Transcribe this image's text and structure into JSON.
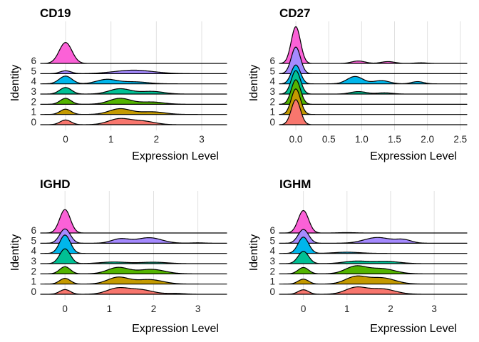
{
  "chart_data": [
    {
      "type": "area",
      "subtype": "ridgeline",
      "title": "CD19",
      "xlabel": "Expression Level",
      "ylabel": "Identity",
      "xlim": [
        -0.55,
        3.55
      ],
      "x_ticks": [
        0,
        1,
        2,
        3
      ],
      "x_tick_labels": [
        "0",
        "1",
        "2",
        "3"
      ],
      "categories": [
        "0",
        "1",
        "2",
        "3",
        "4",
        "5",
        "6"
      ],
      "grid": true,
      "series": [
        {
          "name": "0",
          "color": "#F8766D",
          "peaks": [
            [
              0,
              0.46,
              0.12
            ],
            [
              1.18,
              0.56,
              0.24
            ],
            [
              1.7,
              0.34,
              0.26
            ]
          ]
        },
        {
          "name": "1",
          "color": "#C49A00",
          "peaks": [
            [
              0,
              0.52,
              0.12
            ],
            [
              1.2,
              0.56,
              0.24
            ],
            [
              1.9,
              0.26,
              0.28
            ]
          ]
        },
        {
          "name": "2",
          "color": "#53B400",
          "peaks": [
            [
              0,
              0.58,
              0.12
            ],
            [
              1.2,
              0.58,
              0.24
            ],
            [
              1.9,
              0.22,
              0.26
            ]
          ]
        },
        {
          "name": "3",
          "color": "#00C094",
          "peaks": [
            [
              0,
              0.64,
              0.13
            ],
            [
              1.2,
              0.52,
              0.24
            ],
            [
              1.9,
              0.26,
              0.26
            ]
          ]
        },
        {
          "name": "4",
          "color": "#00B6EB",
          "peaks": [
            [
              0,
              0.76,
              0.14
            ],
            [
              0.9,
              0.42,
              0.22
            ],
            [
              1.5,
              0.2,
              0.3
            ]
          ]
        },
        {
          "name": "5",
          "color": "#A58AFF",
          "peaks": [
            [
              0,
              0.28,
              0.12
            ],
            [
              1.5,
              0.34,
              0.42
            ]
          ]
        },
        {
          "name": "6",
          "color": "#FB61D7",
          "peaks": [
            [
              0,
              2.05,
              0.14
            ]
          ]
        }
      ]
    },
    {
      "type": "area",
      "subtype": "ridgeline",
      "title": "CD27",
      "xlabel": "Expression Level",
      "ylabel": "Identity",
      "xlim": [
        -0.25,
        2.6
      ],
      "x_ticks": [
        0,
        0.5,
        1,
        1.5,
        2,
        2.5
      ],
      "x_tick_labels": [
        "0.0",
        "0.5",
        "1.0",
        "1.5",
        "2.0",
        "2.5"
      ],
      "categories": [
        "0",
        "1",
        "2",
        "3",
        "4",
        "5",
        "6"
      ],
      "grid": true,
      "series": [
        {
          "name": "0",
          "color": "#F8766D",
          "peaks": [
            [
              0,
              2.45,
              0.07
            ]
          ]
        },
        {
          "name": "1",
          "color": "#C49A00",
          "peaks": [
            [
              0,
              2.5,
              0.07
            ]
          ]
        },
        {
          "name": "2",
          "color": "#53B400",
          "peaks": [
            [
              0,
              2.4,
              0.07
            ]
          ]
        },
        {
          "name": "3",
          "color": "#00C094",
          "peaks": [
            [
              0,
              2.3,
              0.07
            ],
            [
              0.95,
              0.24,
              0.12
            ],
            [
              1.35,
              0.12,
              0.12
            ]
          ]
        },
        {
          "name": "4",
          "color": "#00B6EB",
          "peaks": [
            [
              0,
              1.85,
              0.07
            ],
            [
              0.9,
              0.72,
              0.12
            ],
            [
              1.3,
              0.32,
              0.12
            ],
            [
              1.85,
              0.22,
              0.09
            ]
          ]
        },
        {
          "name": "5",
          "color": "#A58AFF",
          "peaks": [
            [
              0,
              2.6,
              0.07
            ]
          ]
        },
        {
          "name": "6",
          "color": "#FB61D7",
          "peaks": [
            [
              0,
              3.6,
              0.07
            ],
            [
              0.95,
              0.24,
              0.1
            ],
            [
              1.4,
              0.18,
              0.1
            ],
            [
              1.9,
              0.06,
              0.1
            ]
          ]
        }
      ]
    },
    {
      "type": "area",
      "subtype": "ridgeline",
      "title": "IGHD",
      "xlabel": "Expression Level",
      "ylabel": "Identity",
      "xlim": [
        -0.55,
        3.65
      ],
      "x_ticks": [
        0,
        1,
        2,
        3
      ],
      "x_tick_labels": [
        "0",
        "1",
        "2",
        "3"
      ],
      "categories": [
        "0",
        "1",
        "2",
        "3",
        "4",
        "5",
        "6"
      ],
      "grid": true,
      "series": [
        {
          "name": "0",
          "color": "#F8766D",
          "peaks": [
            [
              0,
              0.46,
              0.12
            ],
            [
              1.18,
              0.56,
              0.24
            ],
            [
              1.7,
              0.44,
              0.28
            ],
            [
              2.5,
              0.08,
              0.2
            ]
          ]
        },
        {
          "name": "1",
          "color": "#C49A00",
          "peaks": [
            [
              0,
              0.56,
              0.12
            ],
            [
              1.2,
              0.66,
              0.24
            ],
            [
              1.9,
              0.44,
              0.3
            ]
          ]
        },
        {
          "name": "2",
          "color": "#53B400",
          "peaks": [
            [
              0,
              0.7,
              0.12
            ],
            [
              1.2,
              0.62,
              0.24
            ],
            [
              1.95,
              0.44,
              0.3
            ]
          ]
        },
        {
          "name": "3",
          "color": "#00C094",
          "peaks": [
            [
              0,
              1.45,
              0.12
            ],
            [
              1.1,
              0.16,
              0.3
            ],
            [
              2.0,
              0.14,
              0.3
            ]
          ]
        },
        {
          "name": "4",
          "color": "#00B6EB",
          "peaks": [
            [
              0,
              1.8,
              0.12
            ]
          ]
        },
        {
          "name": "5",
          "color": "#A58AFF",
          "peaks": [
            [
              0,
              1.4,
              0.12
            ],
            [
              1.25,
              0.42,
              0.2
            ],
            [
              1.9,
              0.54,
              0.28
            ],
            [
              3.0,
              0.04,
              0.15
            ]
          ]
        },
        {
          "name": "6",
          "color": "#FB61D7",
          "peaks": [
            [
              0,
              2.3,
              0.12
            ]
          ]
        }
      ]
    },
    {
      "type": "area",
      "subtype": "ridgeline",
      "title": "IGHM",
      "xlabel": "Expression Level",
      "ylabel": "Identity",
      "xlim": [
        -0.55,
        3.75
      ],
      "x_ticks": [
        0,
        1,
        2,
        3
      ],
      "x_tick_labels": [
        "0",
        "1",
        "2",
        "3"
      ],
      "categories": [
        "0",
        "1",
        "2",
        "3",
        "4",
        "5",
        "6"
      ],
      "grid": true,
      "series": [
        {
          "name": "0",
          "color": "#F8766D",
          "peaks": [
            [
              0,
              0.44,
              0.12
            ],
            [
              1.2,
              0.64,
              0.24
            ],
            [
              1.8,
              0.52,
              0.3
            ]
          ]
        },
        {
          "name": "1",
          "color": "#C49A00",
          "peaks": [
            [
              0,
              0.48,
              0.12
            ],
            [
              1.2,
              0.7,
              0.24
            ],
            [
              1.8,
              0.6,
              0.3
            ]
          ]
        },
        {
          "name": "2",
          "color": "#53B400",
          "peaks": [
            [
              0,
              0.62,
              0.12
            ],
            [
              1.2,
              0.72,
              0.24
            ],
            [
              1.8,
              0.5,
              0.3
            ]
          ]
        },
        {
          "name": "3",
          "color": "#00C094",
          "peaks": [
            [
              0,
              1.2,
              0.12
            ],
            [
              1.2,
              0.24,
              0.28
            ],
            [
              1.9,
              0.22,
              0.3
            ]
          ]
        },
        {
          "name": "4",
          "color": "#00B6EB",
          "peaks": [
            [
              0,
              1.6,
              0.12
            ],
            [
              1.0,
              0.12,
              0.3
            ]
          ]
        },
        {
          "name": "5",
          "color": "#A58AFF",
          "peaks": [
            [
              0,
              1.35,
              0.12
            ],
            [
              1.7,
              0.56,
              0.3
            ],
            [
              2.3,
              0.32,
              0.18
            ]
          ]
        },
        {
          "name": "6",
          "color": "#FB61D7",
          "peaks": [
            [
              0,
              2.2,
              0.12
            ],
            [
              1.0,
              0.04,
              0.2
            ]
          ]
        }
      ]
    }
  ]
}
